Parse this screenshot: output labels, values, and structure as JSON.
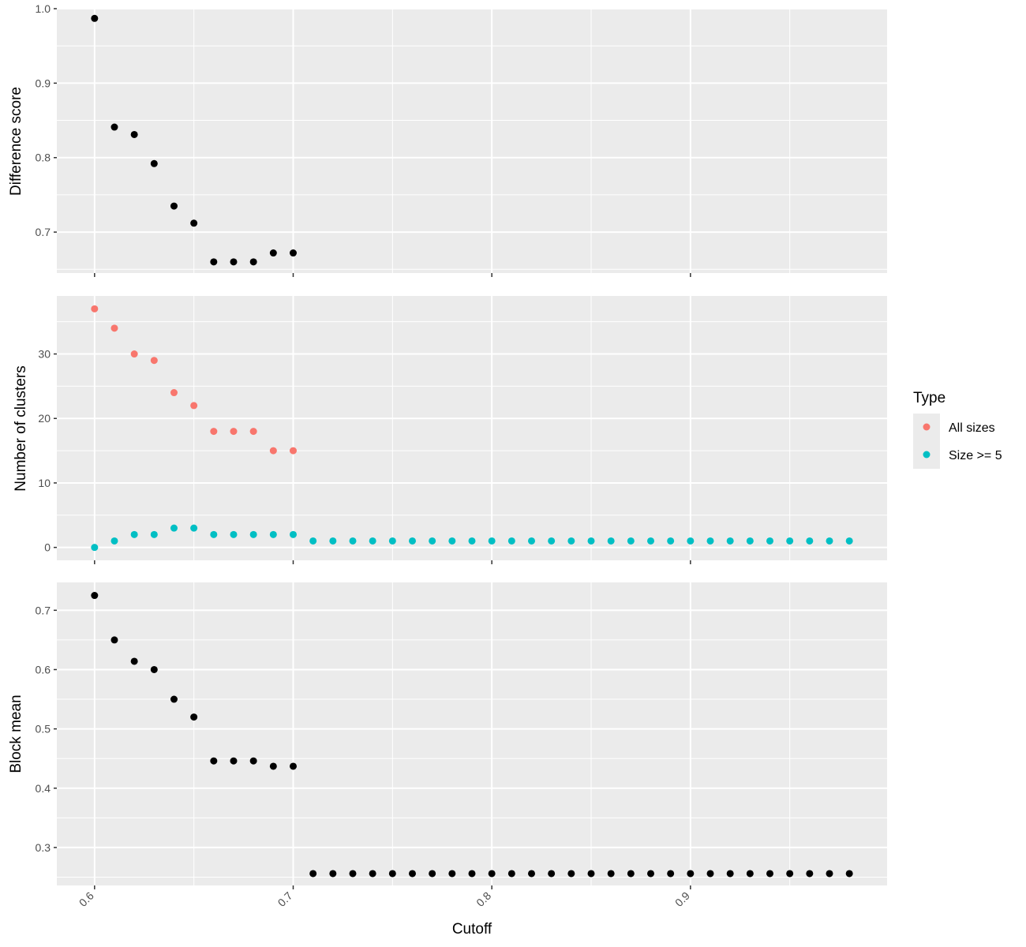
{
  "chart_data": [
    {
      "type": "scatter",
      "ylabel": "Difference score",
      "xlabel": "",
      "xlim": [
        0.581,
        0.999
      ],
      "ylim": [
        0.645,
        1.0
      ],
      "xticks": [
        "0.6",
        "0.7",
        "0.8",
        "0.9"
      ],
      "yticks": [
        "0.7",
        "0.8",
        "0.9",
        "1.0"
      ],
      "grid": true,
      "series": [
        {
          "color": "#000000",
          "x": [
            0.6,
            0.61,
            0.62,
            0.63,
            0.64,
            0.65,
            0.66,
            0.67,
            0.68,
            0.69,
            0.7
          ],
          "y": [
            0.987,
            0.841,
            0.831,
            0.792,
            0.735,
            0.712,
            0.66,
            0.66,
            0.66,
            0.672,
            0.672
          ]
        }
      ]
    },
    {
      "type": "scatter",
      "ylabel": "Number of clusters",
      "xlabel": "",
      "xlim": [
        0.581,
        0.999
      ],
      "ylim": [
        -2,
        39
      ],
      "xticks": [
        "0.6",
        "0.7",
        "0.8",
        "0.9"
      ],
      "yticks": [
        "0",
        "10",
        "20",
        "30"
      ],
      "grid": true,
      "series": [
        {
          "name": "All sizes",
          "color": "#F8766D",
          "x": [
            0.6,
            0.61,
            0.62,
            0.63,
            0.64,
            0.65,
            0.66,
            0.67,
            0.68,
            0.69,
            0.7
          ],
          "y": [
            37,
            34,
            30,
            29,
            24,
            22,
            18,
            18,
            18,
            15,
            15
          ]
        },
        {
          "name": "Size >= 5",
          "color": "#00BFC4",
          "x": [
            0.6,
            0.61,
            0.62,
            0.63,
            0.64,
            0.65,
            0.66,
            0.67,
            0.68,
            0.69,
            0.7,
            0.71,
            0.72,
            0.73,
            0.74,
            0.75,
            0.76,
            0.77,
            0.78,
            0.79,
            0.8,
            0.81,
            0.82,
            0.83,
            0.84,
            0.85,
            0.86,
            0.87,
            0.88,
            0.89,
            0.9,
            0.91,
            0.92,
            0.93,
            0.94,
            0.95,
            0.96,
            0.97,
            0.98
          ],
          "y": [
            0,
            1,
            2,
            2,
            3,
            3,
            2,
            2,
            2,
            2,
            2,
            1,
            1,
            1,
            1,
            1,
            1,
            1,
            1,
            1,
            1,
            1,
            1,
            1,
            1,
            1,
            1,
            1,
            1,
            1,
            1,
            1,
            1,
            1,
            1,
            1,
            1,
            1,
            1
          ]
        }
      ]
    },
    {
      "type": "scatter",
      "ylabel": "Block mean",
      "xlabel": "Cutoff",
      "xlim": [
        0.581,
        0.999
      ],
      "ylim": [
        0.236,
        0.747
      ],
      "xticks": [
        "0.6",
        "0.7",
        "0.8",
        "0.9"
      ],
      "yticks": [
        "0.3",
        "0.4",
        "0.5",
        "0.6",
        "0.7"
      ],
      "grid": true,
      "series": [
        {
          "color": "#000000",
          "x": [
            0.6,
            0.61,
            0.62,
            0.63,
            0.64,
            0.65,
            0.66,
            0.67,
            0.68,
            0.69,
            0.7,
            0.71,
            0.72,
            0.73,
            0.74,
            0.75,
            0.76,
            0.77,
            0.78,
            0.79,
            0.8,
            0.81,
            0.82,
            0.83,
            0.84,
            0.85,
            0.86,
            0.87,
            0.88,
            0.89,
            0.9,
            0.91,
            0.92,
            0.93,
            0.94,
            0.95,
            0.96,
            0.97,
            0.98
          ],
          "y": [
            0.725,
            0.65,
            0.614,
            0.6,
            0.55,
            0.52,
            0.446,
            0.446,
            0.446,
            0.437,
            0.437,
            0.256,
            0.256,
            0.256,
            0.256,
            0.256,
            0.256,
            0.256,
            0.256,
            0.256,
            0.256,
            0.256,
            0.256,
            0.256,
            0.256,
            0.256,
            0.256,
            0.256,
            0.256,
            0.256,
            0.256,
            0.256,
            0.256,
            0.256,
            0.256,
            0.256,
            0.256,
            0.256,
            0.256
          ]
        }
      ]
    }
  ],
  "legend": {
    "title": "Type",
    "placement": "right",
    "items": [
      {
        "label": "All sizes",
        "color": "#F8766D"
      },
      {
        "label": "Size >= 5",
        "color": "#00BFC4"
      }
    ]
  },
  "theme": {
    "panel_background": "#EBEBEB",
    "grid_color": "#FFFFFF"
  }
}
